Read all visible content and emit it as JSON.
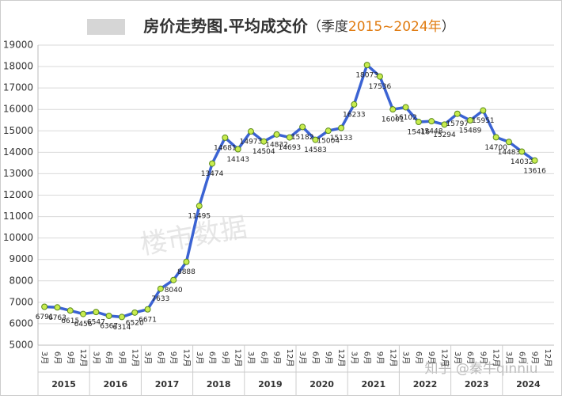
{
  "chart_data": {
    "type": "line",
    "title": "房价走势图.平均成交价",
    "subtitle_prefix": "（季度",
    "subtitle_range": "2015~2024年",
    "subtitle_suffix": "）",
    "categories": [
      "3月",
      "6月",
      "9月",
      "12月",
      "3月",
      "6月",
      "9月",
      "12月",
      "3月",
      "6月",
      "9月",
      "12月",
      "3月",
      "6月",
      "9月",
      "12月",
      "3月",
      "6月",
      "9月",
      "12月",
      "3月",
      "6月",
      "9月",
      "12月",
      "3月",
      "6月",
      "9月",
      "12月",
      "3月",
      "6月",
      "9月",
      "12月",
      "3月",
      "6月",
      "9月",
      "12月",
      "3月",
      "6月",
      "9月",
      "12月"
    ],
    "years": [
      "2015",
      "2016",
      "2017",
      "2018",
      "2019",
      "2020",
      "2021",
      "2022",
      "2023",
      "2024"
    ],
    "series": [
      {
        "name": "平均成交价",
        "color": "#3b63d3",
        "marker_color": "#c8ec4f",
        "values": [
          6791,
          6763,
          6615,
          6456,
          6547,
          6367,
          6314,
          6520,
          6671,
          7633,
          8040,
          8888,
          11495,
          13474,
          14681,
          14143,
          14973,
          14504,
          14832,
          14693,
          15182,
          14583,
          15004,
          15133,
          16233,
          18073,
          17536,
          16001,
          16102,
          15416,
          15448,
          15294,
          15797,
          15489,
          15951,
          14700,
          14483,
          14032,
          13616,
          null
        ]
      }
    ],
    "ylim": [
      5000,
      19000
    ],
    "yticks": [
      5000,
      6000,
      7000,
      8000,
      9000,
      10000,
      11000,
      12000,
      13000,
      14000,
      15000,
      16000,
      17000,
      18000,
      19000
    ],
    "grid": true,
    "watermarks": [
      "楼市数据",
      "知乎 @秦牛qinniu"
    ]
  }
}
